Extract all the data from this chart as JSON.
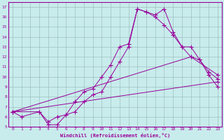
{
  "xlabel": "Windchill (Refroidissement éolien,°C)",
  "background_color": "#c8ecec",
  "line_color": "#990099",
  "xlim": [
    -0.5,
    23.5
  ],
  "ylim": [
    5,
    17.5
  ],
  "xticks": [
    0,
    1,
    2,
    3,
    4,
    5,
    6,
    7,
    8,
    9,
    10,
    11,
    12,
    13,
    14,
    15,
    16,
    17,
    18,
    19,
    20,
    21,
    22,
    23
  ],
  "yticks": [
    5,
    6,
    7,
    8,
    9,
    10,
    11,
    12,
    13,
    14,
    15,
    16,
    17
  ],
  "line1_x": [
    0,
    1,
    3,
    4,
    5,
    6,
    7,
    8,
    9,
    10,
    11,
    12,
    13,
    14,
    15,
    16,
    17,
    18,
    19,
    20,
    21,
    22,
    23
  ],
  "line1_y": [
    6.5,
    6.0,
    6.5,
    5.5,
    6.0,
    6.2,
    7.5,
    8.5,
    8.8,
    10.0,
    11.2,
    13.0,
    13.3,
    16.8,
    16.5,
    16.2,
    16.8,
    14.5,
    13.0,
    13.0,
    11.7,
    10.5,
    9.8
  ],
  "line2_x": [
    0,
    3,
    4,
    5,
    6,
    7,
    8,
    9,
    10,
    11,
    12,
    13,
    14,
    15,
    16,
    17,
    18,
    19,
    20,
    21,
    22,
    23
  ],
  "line2_y": [
    6.5,
    6.5,
    5.2,
    5.2,
    6.2,
    6.5,
    7.5,
    8.2,
    8.5,
    10.0,
    11.5,
    13.0,
    16.8,
    16.5,
    16.0,
    15.2,
    14.2,
    13.0,
    12.0,
    11.7,
    10.2,
    9.0
  ],
  "line3_x": [
    0,
    23
  ],
  "line3_y": [
    6.5,
    9.5
  ],
  "line4_x": [
    0,
    20,
    23
  ],
  "line4_y": [
    6.5,
    12.0,
    10.2
  ],
  "grid_color": "#9fbfbf",
  "marker": "+",
  "markersize": 4,
  "lw": 0.7
}
